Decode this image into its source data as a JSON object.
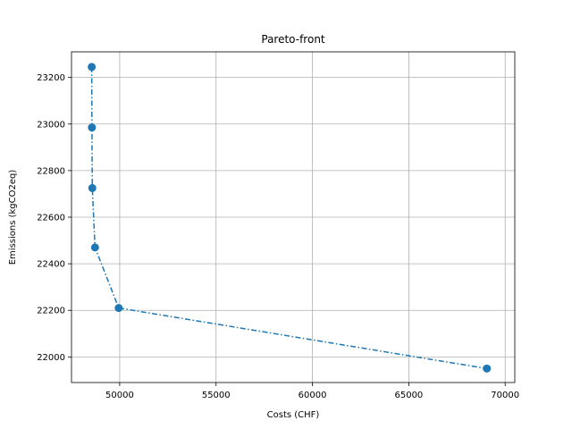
{
  "chart_data": {
    "type": "line",
    "title": "Pareto-front",
    "xlabel": "Costs (CHF)",
    "ylabel": "Emissions (kgCO2eq)",
    "xlim": [
      47500,
      70500
    ],
    "ylim": [
      21890,
      23310
    ],
    "xticks": [
      50000,
      55000,
      60000,
      65000,
      70000
    ],
    "yticks": [
      22000,
      22200,
      22400,
      22600,
      22800,
      23000,
      23200
    ],
    "grid": true,
    "line_style": "dash-dot",
    "marker": "circle",
    "color": "#1f77b4",
    "series": [
      {
        "x": [
          48550,
          48560,
          48580,
          48720,
          49950,
          69050
        ],
        "y": [
          23245,
          22985,
          22725,
          22470,
          22210,
          21950
        ]
      }
    ]
  }
}
